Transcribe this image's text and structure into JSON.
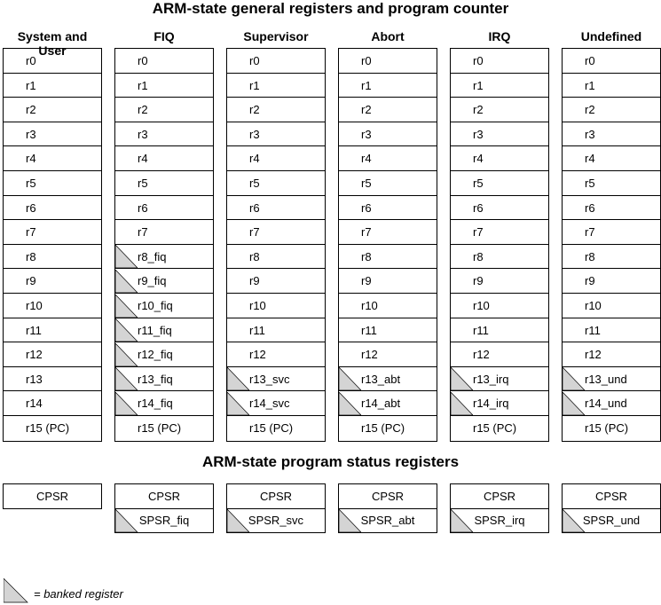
{
  "title_registers": "ARM-state general registers and program counter",
  "title_psr": "ARM-state program status registers",
  "modes": [
    {
      "name": "System and User",
      "regs": [
        {
          "label": "r0",
          "banked": false
        },
        {
          "label": "r1",
          "banked": false
        },
        {
          "label": "r2",
          "banked": false
        },
        {
          "label": "r3",
          "banked": false
        },
        {
          "label": "r4",
          "banked": false
        },
        {
          "label": "r5",
          "banked": false
        },
        {
          "label": "r6",
          "banked": false
        },
        {
          "label": "r7",
          "banked": false
        },
        {
          "label": "r8",
          "banked": false
        },
        {
          "label": "r9",
          "banked": false
        },
        {
          "label": "r10",
          "banked": false
        },
        {
          "label": "r11",
          "banked": false
        },
        {
          "label": "r12",
          "banked": false
        },
        {
          "label": "r13",
          "banked": false
        },
        {
          "label": "r14",
          "banked": false
        },
        {
          "label": "r15 (PC)",
          "banked": false
        }
      ],
      "cpsr": "CPSR",
      "spsr": null
    },
    {
      "name": "FIQ",
      "regs": [
        {
          "label": "r0",
          "banked": false
        },
        {
          "label": "r1",
          "banked": false
        },
        {
          "label": "r2",
          "banked": false
        },
        {
          "label": "r3",
          "banked": false
        },
        {
          "label": "r4",
          "banked": false
        },
        {
          "label": "r5",
          "banked": false
        },
        {
          "label": "r6",
          "banked": false
        },
        {
          "label": "r7",
          "banked": false
        },
        {
          "label": "r8_fiq",
          "banked": true
        },
        {
          "label": "r9_fiq",
          "banked": true
        },
        {
          "label": "r10_fiq",
          "banked": true
        },
        {
          "label": "r11_fiq",
          "banked": true
        },
        {
          "label": "r12_fiq",
          "banked": true
        },
        {
          "label": "r13_fiq",
          "banked": true
        },
        {
          "label": "r14_fiq",
          "banked": true
        },
        {
          "label": "r15 (PC)",
          "banked": false
        }
      ],
      "cpsr": "CPSR",
      "spsr": "SPSR_fiq"
    },
    {
      "name": "Supervisor",
      "regs": [
        {
          "label": "r0",
          "banked": false
        },
        {
          "label": "r1",
          "banked": false
        },
        {
          "label": "r2",
          "banked": false
        },
        {
          "label": "r3",
          "banked": false
        },
        {
          "label": "r4",
          "banked": false
        },
        {
          "label": "r5",
          "banked": false
        },
        {
          "label": "r6",
          "banked": false
        },
        {
          "label": "r7",
          "banked": false
        },
        {
          "label": "r8",
          "banked": false
        },
        {
          "label": "r9",
          "banked": false
        },
        {
          "label": "r10",
          "banked": false
        },
        {
          "label": "r11",
          "banked": false
        },
        {
          "label": "r12",
          "banked": false
        },
        {
          "label": "r13_svc",
          "banked": true
        },
        {
          "label": "r14_svc",
          "banked": true
        },
        {
          "label": "r15 (PC)",
          "banked": false
        }
      ],
      "cpsr": "CPSR",
      "spsr": "SPSR_svc"
    },
    {
      "name": "Abort",
      "regs": [
        {
          "label": "r0",
          "banked": false
        },
        {
          "label": "r1",
          "banked": false
        },
        {
          "label": "r2",
          "banked": false
        },
        {
          "label": "r3",
          "banked": false
        },
        {
          "label": "r4",
          "banked": false
        },
        {
          "label": "r5",
          "banked": false
        },
        {
          "label": "r6",
          "banked": false
        },
        {
          "label": "r7",
          "banked": false
        },
        {
          "label": "r8",
          "banked": false
        },
        {
          "label": "r9",
          "banked": false
        },
        {
          "label": "r10",
          "banked": false
        },
        {
          "label": "r11",
          "banked": false
        },
        {
          "label": "r12",
          "banked": false
        },
        {
          "label": "r13_abt",
          "banked": true
        },
        {
          "label": "r14_abt",
          "banked": true
        },
        {
          "label": "r15 (PC)",
          "banked": false
        }
      ],
      "cpsr": "CPSR",
      "spsr": "SPSR_abt"
    },
    {
      "name": "IRQ",
      "regs": [
        {
          "label": "r0",
          "banked": false
        },
        {
          "label": "r1",
          "banked": false
        },
        {
          "label": "r2",
          "banked": false
        },
        {
          "label": "r3",
          "banked": false
        },
        {
          "label": "r4",
          "banked": false
        },
        {
          "label": "r5",
          "banked": false
        },
        {
          "label": "r6",
          "banked": false
        },
        {
          "label": "r7",
          "banked": false
        },
        {
          "label": "r8",
          "banked": false
        },
        {
          "label": "r9",
          "banked": false
        },
        {
          "label": "r10",
          "banked": false
        },
        {
          "label": "r11",
          "banked": false
        },
        {
          "label": "r12",
          "banked": false
        },
        {
          "label": "r13_irq",
          "banked": true
        },
        {
          "label": "r14_irq",
          "banked": true
        },
        {
          "label": "r15 (PC)",
          "banked": false
        }
      ],
      "cpsr": "CPSR",
      "spsr": "SPSR_irq"
    },
    {
      "name": "Undefined",
      "regs": [
        {
          "label": "r0",
          "banked": false
        },
        {
          "label": "r1",
          "banked": false
        },
        {
          "label": "r2",
          "banked": false
        },
        {
          "label": "r3",
          "banked": false
        },
        {
          "label": "r4",
          "banked": false
        },
        {
          "label": "r5",
          "banked": false
        },
        {
          "label": "r6",
          "banked": false
        },
        {
          "label": "r7",
          "banked": false
        },
        {
          "label": "r8",
          "banked": false
        },
        {
          "label": "r9",
          "banked": false
        },
        {
          "label": "r10",
          "banked": false
        },
        {
          "label": "r11",
          "banked": false
        },
        {
          "label": "r12",
          "banked": false
        },
        {
          "label": "r13_und",
          "banked": true
        },
        {
          "label": "r14_und",
          "banked": true
        },
        {
          "label": "r15 (PC)",
          "banked": false
        }
      ],
      "cpsr": "CPSR",
      "spsr": "SPSR_und"
    }
  ],
  "legend": {
    "text": "= banked register"
  },
  "colors": {
    "banked_fill": "#d4d4d4",
    "border": "#000000"
  }
}
